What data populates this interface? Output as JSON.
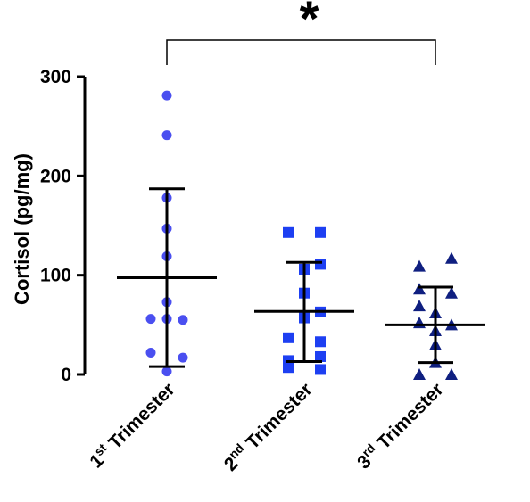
{
  "chart_data": {
    "type": "scatter",
    "subtype": "dot-plot-with-mean-and-sd",
    "ylabel": "Cortisol (pg/mg)",
    "ylim": [
      0,
      300
    ],
    "yticks": [
      0,
      100,
      200,
      300
    ],
    "categories": [
      {
        "base": "1",
        "sup": "st",
        "rest": " Trimester"
      },
      {
        "base": "2",
        "sup": "nd",
        "rest": " Trimester"
      },
      {
        "base": "3",
        "sup": "rd",
        "rest": " Trimester"
      }
    ],
    "series": [
      {
        "marker": "circle",
        "color": "#4a4ff0",
        "points": [
          281,
          241,
          178,
          147,
          119,
          73,
          56,
          56,
          55,
          22,
          17,
          3
        ],
        "offsets": [
          0,
          0,
          0,
          0,
          0,
          0,
          -1,
          0,
          1,
          -1,
          1,
          0
        ],
        "mean": 97.5,
        "sd_upper": 187,
        "sd_lower": 8
      },
      {
        "marker": "square",
        "color": "#1d3ff2",
        "points": [
          143,
          143,
          111,
          106,
          82,
          63,
          57,
          37,
          33,
          18,
          14,
          7,
          5
        ],
        "offsets": [
          -1,
          1,
          1,
          0,
          0,
          1,
          0,
          -1,
          1,
          1,
          -1,
          -1,
          1
        ],
        "mean": 63.5,
        "sd_upper": 113,
        "sd_lower": 13
      },
      {
        "marker": "triangle",
        "color": "#0f1f80",
        "points": [
          117,
          109,
          86,
          82,
          69,
          62,
          52,
          50,
          44,
          30,
          12,
          0,
          0
        ],
        "offsets": [
          1,
          -1,
          -1,
          1,
          -1,
          0,
          -1,
          1,
          0,
          0,
          0,
          -1,
          1
        ],
        "mean": 50,
        "sd_upper": 88,
        "sd_lower": 12
      }
    ],
    "significance": {
      "from": 0,
      "to": 2,
      "label": "*"
    }
  }
}
